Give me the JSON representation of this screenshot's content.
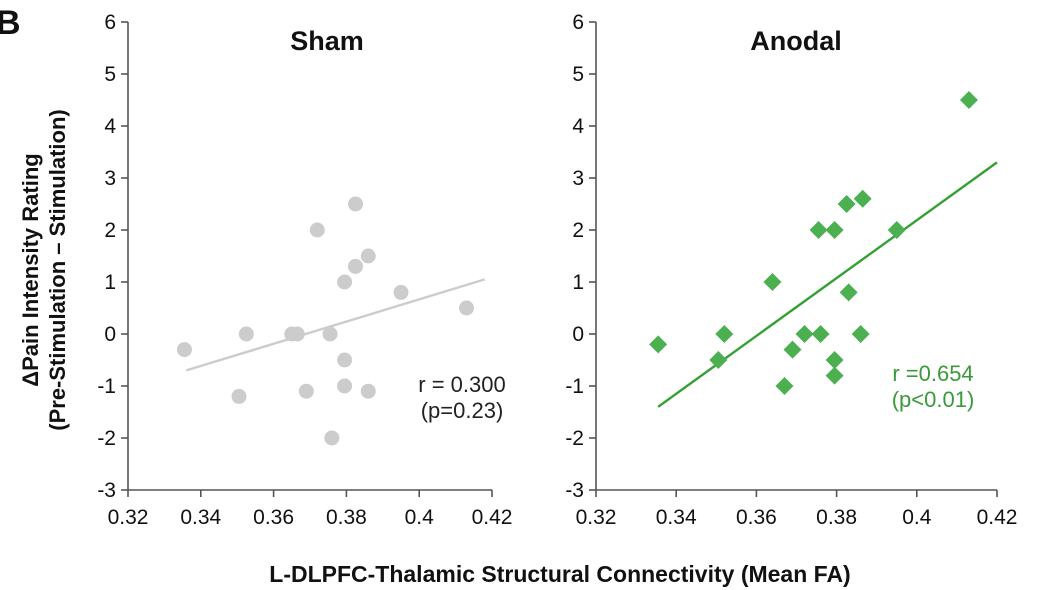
{
  "figure": {
    "panel_letter": "B",
    "ylabel_line1": "ΔPain Intensity Rating",
    "ylabel_line2": "(Pre-Stimulation – Stimulation)",
    "xlabel": "L-DLPFC-Thalamic Structural Connectivity (Mean FA)"
  },
  "chart_data": [
    {
      "type": "scatter",
      "title": "Sham",
      "marker": "circle",
      "color": "#cccccc",
      "trend_color": "#cccccc",
      "stat_color": "#222222",
      "stat_line1": "r = 0.300",
      "stat_line2": "(p=0.23)",
      "xlim": [
        0.32,
        0.42
      ],
      "ylim": [
        -3,
        6
      ],
      "xticks": [
        "0.32",
        "0.34",
        "0.36",
        "0.38",
        "0.4",
        "0.42"
      ],
      "yticks": [
        "-3",
        "-2",
        "-1",
        "0",
        "1",
        "2",
        "3",
        "4",
        "5",
        "6"
      ],
      "trendline": [
        [
          0.336,
          -0.7
        ],
        [
          0.418,
          1.05
        ]
      ],
      "points": [
        [
          0.3355,
          -0.3
        ],
        [
          0.3505,
          -1.2
        ],
        [
          0.3525,
          0.0
        ],
        [
          0.365,
          0.0
        ],
        [
          0.3665,
          0.0
        ],
        [
          0.369,
          -1.1
        ],
        [
          0.372,
          2.0
        ],
        [
          0.3755,
          0.0
        ],
        [
          0.376,
          -2.0
        ],
        [
          0.3795,
          1.0
        ],
        [
          0.3795,
          -0.5
        ],
        [
          0.3795,
          -1.0
        ],
        [
          0.3825,
          2.5
        ],
        [
          0.3825,
          1.3
        ],
        [
          0.386,
          1.5
        ],
        [
          0.386,
          -1.1
        ],
        [
          0.395,
          0.8
        ],
        [
          0.413,
          0.5
        ]
      ]
    },
    {
      "type": "scatter",
      "title": "Anodal",
      "marker": "diamond",
      "color": "#4caf50",
      "trend_color": "#33a033",
      "stat_color": "#3a9a3a",
      "stat_line1": "r =0.654",
      "stat_line2": "(p<0.01)",
      "xlim": [
        0.32,
        0.42
      ],
      "ylim": [
        -3,
        6
      ],
      "xticks": [
        "0.32",
        "0.34",
        "0.36",
        "0.38",
        "0.4",
        "0.42"
      ],
      "yticks": [
        "-3",
        "-2",
        "-1",
        "0",
        "1",
        "2",
        "3",
        "4",
        "5",
        "6"
      ],
      "trendline": [
        [
          0.3355,
          -1.4
        ],
        [
          0.42,
          3.3
        ]
      ],
      "points": [
        [
          0.3355,
          -0.2
        ],
        [
          0.3505,
          -0.5
        ],
        [
          0.352,
          0.0
        ],
        [
          0.364,
          1.0
        ],
        [
          0.367,
          -1.0
        ],
        [
          0.369,
          -0.3
        ],
        [
          0.372,
          0.0
        ],
        [
          0.3755,
          2.0
        ],
        [
          0.376,
          0.0
        ],
        [
          0.3795,
          2.0
        ],
        [
          0.3795,
          -0.5
        ],
        [
          0.3795,
          -0.8
        ],
        [
          0.3825,
          2.5
        ],
        [
          0.383,
          0.8
        ],
        [
          0.386,
          0.0
        ],
        [
          0.3865,
          2.6
        ],
        [
          0.395,
          2.0
        ],
        [
          0.413,
          4.5
        ]
      ]
    }
  ]
}
